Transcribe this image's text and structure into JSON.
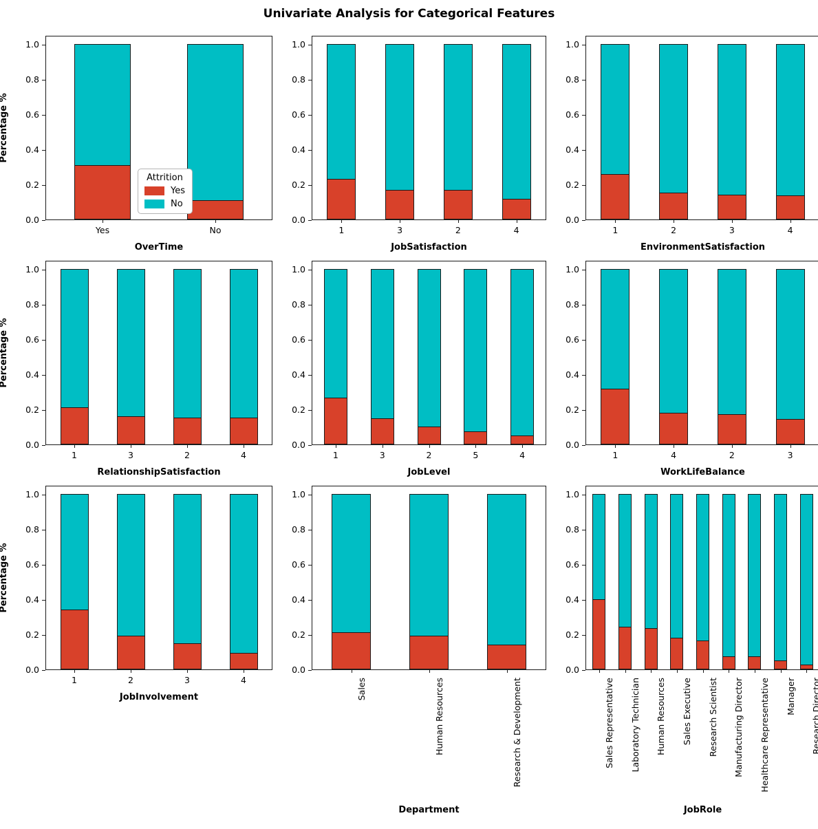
{
  "title": "Univariate Analysis for Categorical Features",
  "legend": {
    "title": "Attrition",
    "items": [
      {
        "label": "Yes",
        "color": "#d8412a"
      },
      {
        "label": "No",
        "color": "#00bec4"
      }
    ]
  },
  "axes": {
    "ylabel": "Percentage %",
    "yticks": [
      "0.0",
      "0.2",
      "0.4",
      "0.6",
      "0.8",
      "1.0"
    ],
    "ytick_values": [
      0.0,
      0.2,
      0.4,
      0.6,
      0.8,
      1.0
    ],
    "ylim": [
      0,
      1
    ]
  },
  "colors": {
    "yes": "#d8412a",
    "no": "#00bec4",
    "edge": "#1a1a1a"
  },
  "chart_data": [
    {
      "type": "bar",
      "stacked": true,
      "xlabel": "OverTime",
      "categories": [
        "Yes",
        "No"
      ],
      "series": [
        {
          "name": "Yes",
          "values": [
            0.305,
            0.104
          ]
        },
        {
          "name": "No",
          "values": [
            0.695,
            0.896
          ]
        }
      ],
      "ylim": [
        0,
        1
      ],
      "show_ylabel": true,
      "show_legend": true,
      "rotated_xticklabels": false
    },
    {
      "type": "bar",
      "stacked": true,
      "xlabel": "JobSatisfaction",
      "categories": [
        "1",
        "3",
        "2",
        "4"
      ],
      "series": [
        {
          "name": "Yes",
          "values": [
            0.228,
            0.165,
            0.164,
            0.113
          ]
        },
        {
          "name": "No",
          "values": [
            0.772,
            0.835,
            0.836,
            0.887
          ]
        }
      ],
      "ylim": [
        0,
        1
      ],
      "show_ylabel": false,
      "show_legend": false,
      "rotated_xticklabels": false
    },
    {
      "type": "bar",
      "stacked": true,
      "xlabel": "EnvironmentSatisfaction",
      "categories": [
        "1",
        "2",
        "3",
        "4"
      ],
      "series": [
        {
          "name": "Yes",
          "values": [
            0.254,
            0.15,
            0.137,
            0.135
          ]
        },
        {
          "name": "No",
          "values": [
            0.746,
            0.85,
            0.863,
            0.865
          ]
        }
      ],
      "ylim": [
        0,
        1
      ],
      "show_ylabel": false,
      "show_legend": false,
      "rotated_xticklabels": false
    },
    {
      "type": "bar",
      "stacked": true,
      "xlabel": "RelationshipSatisfaction",
      "categories": [
        "1",
        "3",
        "2",
        "4"
      ],
      "series": [
        {
          "name": "Yes",
          "values": [
            0.207,
            0.155,
            0.149,
            0.148
          ]
        },
        {
          "name": "No",
          "values": [
            0.793,
            0.845,
            0.851,
            0.852
          ]
        }
      ],
      "ylim": [
        0,
        1
      ],
      "show_ylabel": true,
      "show_legend": false,
      "rotated_xticklabels": false
    },
    {
      "type": "bar",
      "stacked": true,
      "xlabel": "JobLevel",
      "categories": [
        "1",
        "3",
        "2",
        "5",
        "4"
      ],
      "series": [
        {
          "name": "Yes",
          "values": [
            0.263,
            0.147,
            0.097,
            0.072,
            0.047
          ]
        },
        {
          "name": "No",
          "values": [
            0.737,
            0.853,
            0.903,
            0.928,
            0.953
          ]
        }
      ],
      "ylim": [
        0,
        1
      ],
      "show_ylabel": false,
      "show_legend": false,
      "rotated_xticklabels": false
    },
    {
      "type": "bar",
      "stacked": true,
      "xlabel": "WorkLifeBalance",
      "categories": [
        "1",
        "4",
        "2",
        "3"
      ],
      "series": [
        {
          "name": "Yes",
          "values": [
            0.313,
            0.176,
            0.169,
            0.142
          ]
        },
        {
          "name": "No",
          "values": [
            0.687,
            0.824,
            0.831,
            0.858
          ]
        }
      ],
      "ylim": [
        0,
        1
      ],
      "show_ylabel": false,
      "show_legend": false,
      "rotated_xticklabels": false
    },
    {
      "type": "bar",
      "stacked": true,
      "xlabel": "JobInvolvement",
      "categories": [
        "1",
        "2",
        "3",
        "4"
      ],
      "series": [
        {
          "name": "Yes",
          "values": [
            0.337,
            0.189,
            0.144,
            0.09
          ]
        },
        {
          "name": "No",
          "values": [
            0.663,
            0.811,
            0.856,
            0.91
          ]
        }
      ],
      "ylim": [
        0,
        1
      ],
      "show_ylabel": true,
      "show_legend": false,
      "rotated_xticklabels": false
    },
    {
      "type": "bar",
      "stacked": true,
      "xlabel": "Department",
      "categories": [
        "Sales",
        "Human Resources",
        "Research & Development"
      ],
      "series": [
        {
          "name": "Yes",
          "values": [
            0.206,
            0.19,
            0.138
          ]
        },
        {
          "name": "No",
          "values": [
            0.794,
            0.81,
            0.862
          ]
        }
      ],
      "ylim": [
        0,
        1
      ],
      "show_ylabel": false,
      "show_legend": false,
      "rotated_xticklabels": true
    },
    {
      "type": "bar",
      "stacked": true,
      "xlabel": "JobRole",
      "categories": [
        "Sales Representative",
        "Laboratory Technician",
        "Human Resources",
        "Sales Executive",
        "Research Scientist",
        "Manufacturing Director",
        "Healthcare Representative",
        "Manager",
        "Research Director"
      ],
      "series": [
        {
          "name": "Yes",
          "values": [
            0.398,
            0.239,
            0.231,
            0.175,
            0.161,
            0.069,
            0.069,
            0.049,
            0.025
          ]
        },
        {
          "name": "No",
          "values": [
            0.602,
            0.761,
            0.769,
            0.825,
            0.839,
            0.931,
            0.931,
            0.951,
            0.975
          ]
        }
      ],
      "ylim": [
        0,
        1
      ],
      "show_ylabel": false,
      "show_legend": false,
      "rotated_xticklabels": true
    }
  ]
}
